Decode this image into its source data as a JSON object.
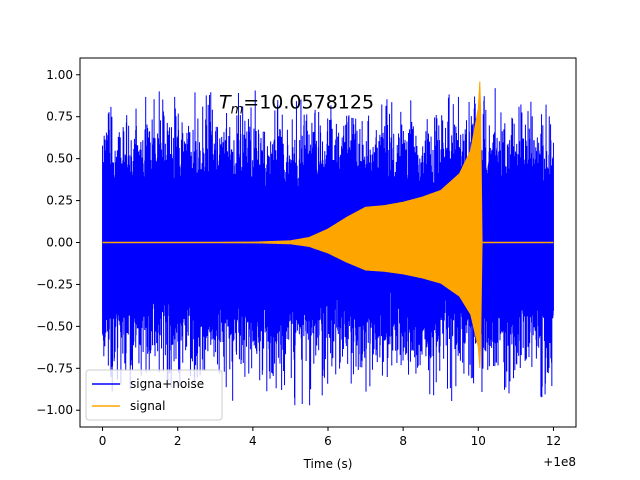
{
  "chart_data": {
    "type": "line",
    "annotation": {
      "prefix": "T",
      "subscript": "m",
      "equals_value": "=10.0578125",
      "x": 3.1,
      "y": 0.8
    },
    "xlabel": "Time (s)",
    "ylabel": "",
    "x_offset_label": "+1e8",
    "xlim": [
      -0.6,
      12.6
    ],
    "ylim": [
      -1.1,
      1.1
    ],
    "x_ticks": [
      0,
      2,
      4,
      6,
      8,
      10,
      12
    ],
    "x_tick_labels": [
      "0",
      "2",
      "4",
      "6",
      "8",
      "10",
      "12"
    ],
    "y_ticks": [
      1.0,
      0.75,
      0.5,
      0.25,
      0.0,
      -0.25,
      -0.5,
      -0.75,
      -1.0
    ],
    "y_tick_labels": [
      "1.00",
      "0.75",
      "0.50",
      "0.25",
      "0.00",
      "−0.25",
      "−0.50",
      "−0.75",
      "−1.00"
    ],
    "grid": false,
    "legend_position": "lower-left",
    "series": [
      {
        "name": "signa+noise",
        "color": "#0000ff",
        "x_start": 0,
        "x_end": 12.0,
        "typical_amplitude": 0.45,
        "peak_amplitude": 0.97,
        "description_key": "noisy"
      },
      {
        "name": "signal",
        "color": "#ffa500",
        "x_start": 0,
        "x_end": 12.0,
        "envelope_x": [
          0,
          3,
          4,
          5,
          5.5,
          6,
          6.5,
          7,
          7.5,
          8,
          8.5,
          9,
          9.5,
          9.8,
          10.0,
          10.05,
          10.1,
          12.0
        ],
        "envelope_y": [
          0.0,
          0.0,
          0.002,
          0.01,
          0.03,
          0.08,
          0.15,
          0.21,
          0.22,
          0.24,
          0.27,
          0.31,
          0.41,
          0.55,
          0.8,
          1.0,
          0.0,
          0.0
        ]
      }
    ]
  }
}
